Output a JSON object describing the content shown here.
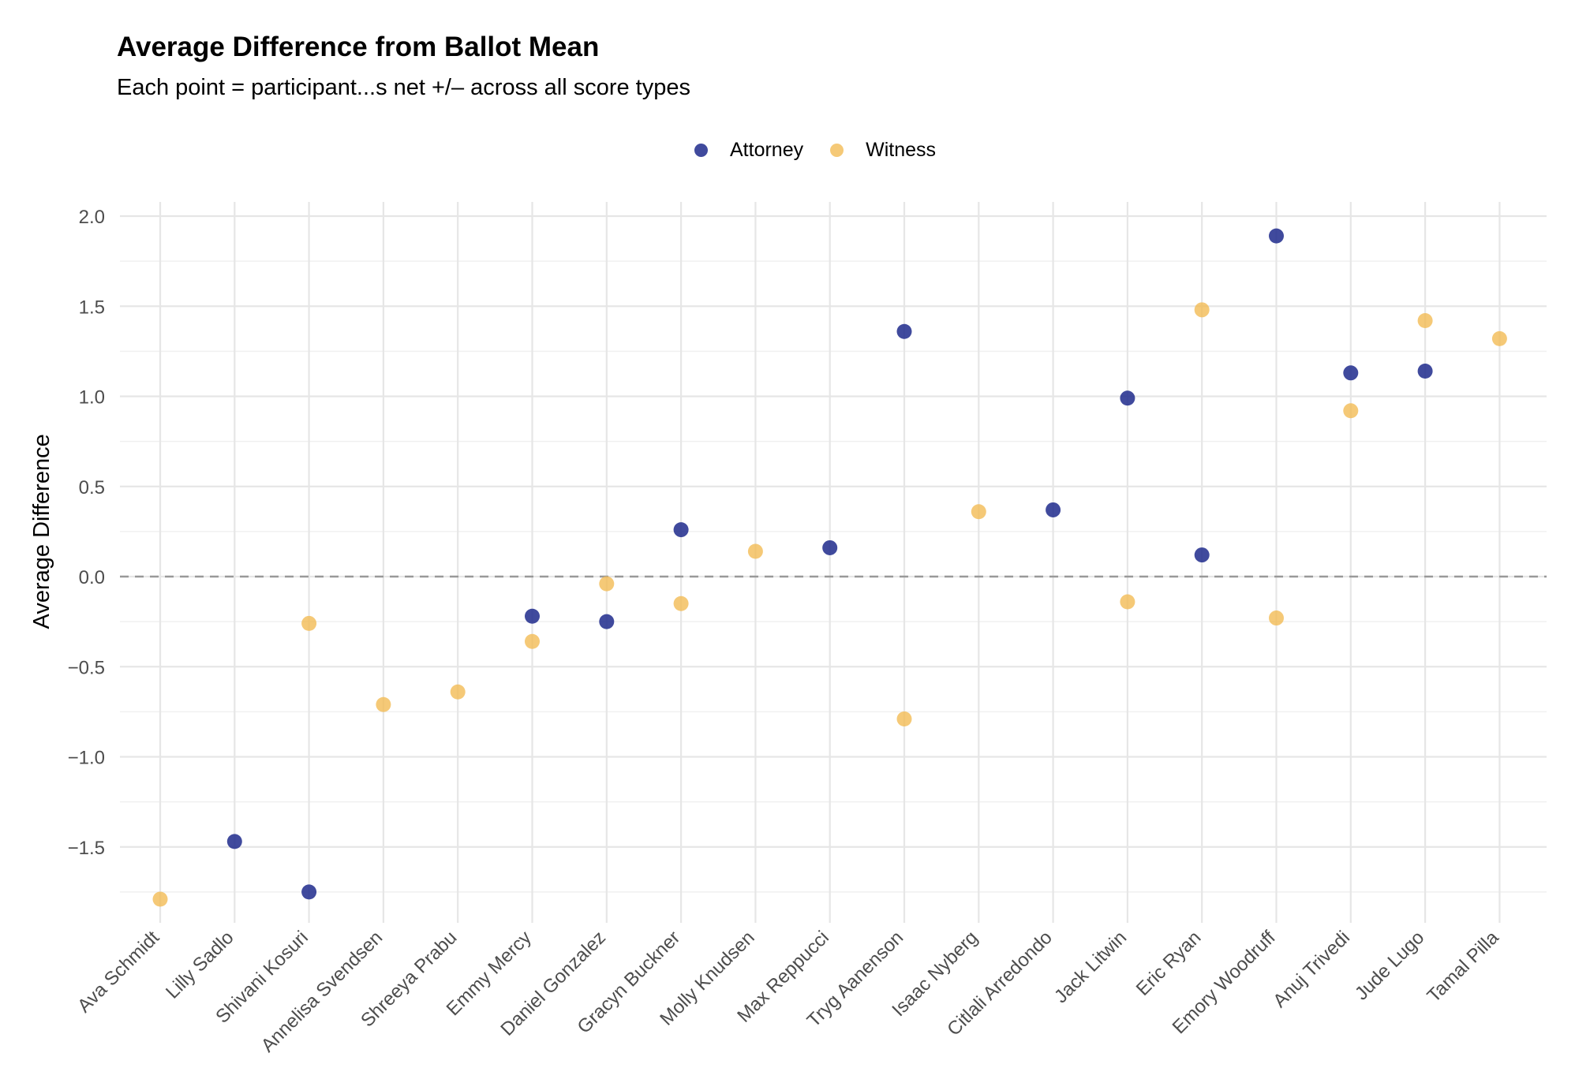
{
  "chart_data": {
    "type": "scatter",
    "title": "Average Difference from Ballot Mean",
    "subtitle": "Each point = participant...s net +/– across all score types",
    "xlabel": "",
    "ylabel": "Average Difference",
    "ylim": [
      -1.9,
      2.07
    ],
    "yticks": [
      -1.5,
      -1.0,
      -0.5,
      0.0,
      0.5,
      1.0,
      1.5,
      2.0
    ],
    "ytick_labels": [
      "−1.5",
      "−1.0",
      "−0.5",
      "0.0",
      "0.5",
      "1.0",
      "1.5",
      "2.0"
    ],
    "reference_line": 0,
    "grid": true,
    "legend_position": "top",
    "categories": [
      "Ava Schmidt",
      "Lilly Sadlo",
      "Shivani Kosuri",
      "Annelisa Svendsen",
      "Shreeya Prabu",
      "Emmy Mercy",
      "Daniel Gonzalez",
      "Gracyn Buckner",
      "Molly Knudsen",
      "Max Reppucci",
      "Tryg Aanenson",
      "Isaac Nyberg",
      "Citlali Arredondo",
      "Jack Litwin",
      "Eric Ryan",
      "Emory Woodruff",
      "Anuj Trivedi",
      "Jude Lugo",
      "Tamal Pilla"
    ],
    "series": [
      {
        "name": "Attorney",
        "color": "#1f2a8c",
        "values": [
          null,
          -1.47,
          -1.75,
          null,
          null,
          -0.22,
          -0.25,
          0.26,
          null,
          0.16,
          1.36,
          null,
          0.37,
          0.99,
          0.12,
          1.89,
          1.13,
          1.14,
          null
        ]
      },
      {
        "name": "Witness",
        "color": "#f2bc55",
        "values": [
          -1.79,
          null,
          -0.26,
          -0.71,
          -0.64,
          -0.36,
          -0.04,
          -0.15,
          0.14,
          null,
          -0.79,
          0.36,
          null,
          -0.14,
          1.48,
          -0.23,
          0.92,
          1.42,
          1.32
        ]
      }
    ]
  }
}
